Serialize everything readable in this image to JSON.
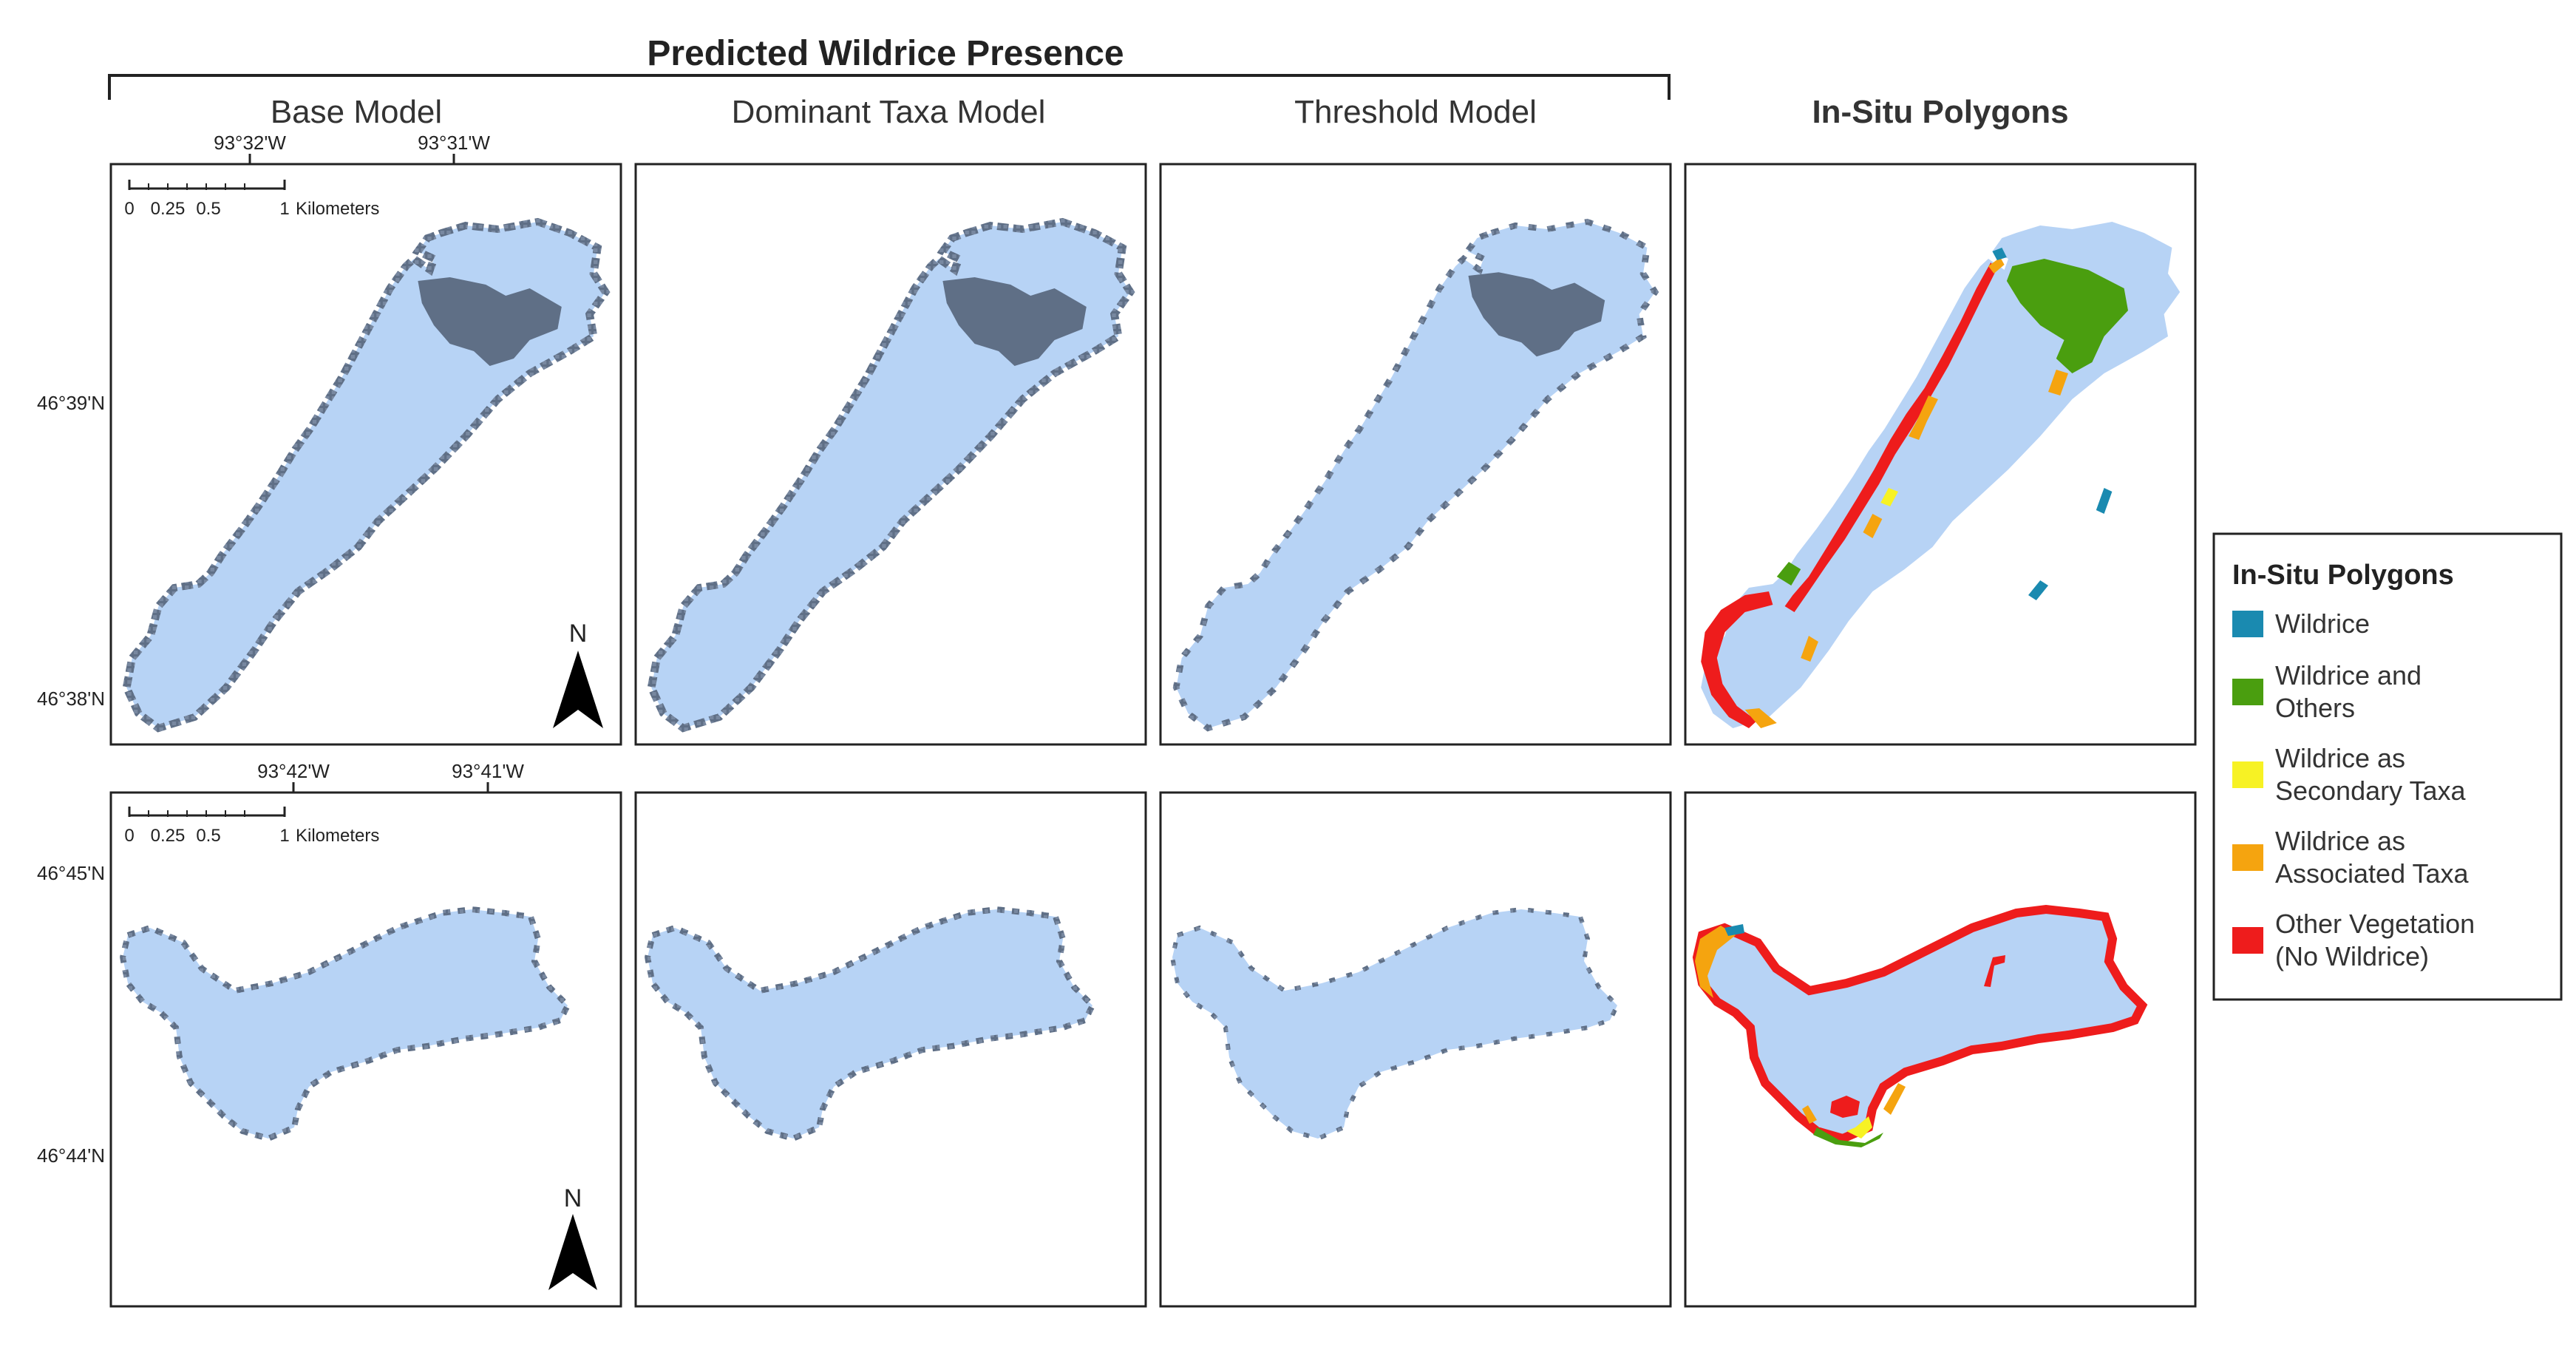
{
  "title": "Predicted Wildrice Presence",
  "columns": [
    "Base Model",
    "Dominant Taxa Model",
    "Threshold Model",
    "In-Situ Polygons"
  ],
  "row1": {
    "lon_labels": [
      "93°32'W",
      "93°31'W"
    ],
    "lat_labels": [
      "46°39'N",
      "46°38'N"
    ]
  },
  "row2": {
    "lon_labels": [
      "93°42'W",
      "93°41'W"
    ],
    "lat_labels": [
      "46°45'N",
      "46°44'N"
    ]
  },
  "scale_bar": {
    "ticks": [
      "0",
      "0.25",
      "0.5",
      "1"
    ],
    "unit": "Kilometers"
  },
  "north_label": "N",
  "legend": {
    "title": "In-Situ Polygons",
    "items": [
      {
        "lines": [
          "Wildrice"
        ],
        "color": "#1a8ab0"
      },
      {
        "lines": [
          "Wildrice and",
          "Others"
        ],
        "color": "#4a9e0f"
      },
      {
        "lines": [
          "Wildrice as",
          "Secondary Taxa"
        ],
        "color": "#f7f224"
      },
      {
        "lines": [
          "Wildrice as",
          "Associated Taxa"
        ],
        "color": "#f5a40f"
      },
      {
        "lines": [
          "Other Vegetation",
          "(No Wildrice)"
        ],
        "color": "#ee1c1c"
      }
    ]
  },
  "colors": {
    "lake": "#b7d3f5",
    "predicted": "#5f6f86",
    "frame": "#222222"
  }
}
